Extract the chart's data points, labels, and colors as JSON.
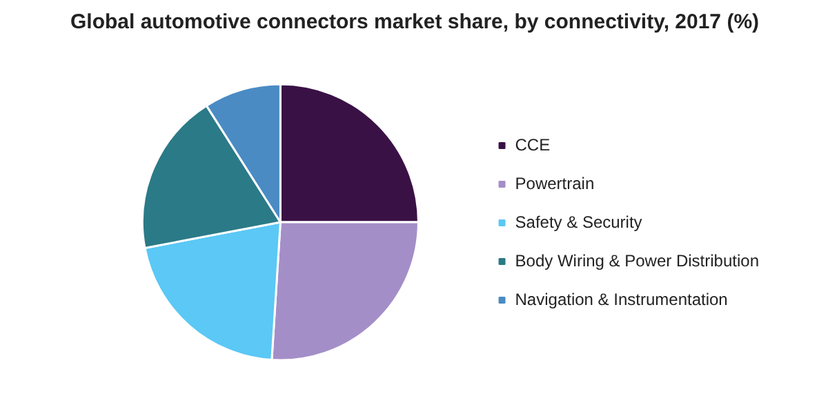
{
  "chart_data": {
    "type": "pie",
    "title": "Global automotive connectors market share, by connectivity, 2017 (%)",
    "categories": [
      "CCE",
      "Powertrain",
      "Safety & Security",
      "Body Wiring & Power Distribution",
      "Navigation & Instrumentation"
    ],
    "values": [
      25,
      26,
      21,
      19,
      9
    ],
    "colors": [
      "#3a1145",
      "#a48ec8",
      "#5bc8f5",
      "#2b7a87",
      "#4a8bc4"
    ],
    "legend": "right"
  }
}
